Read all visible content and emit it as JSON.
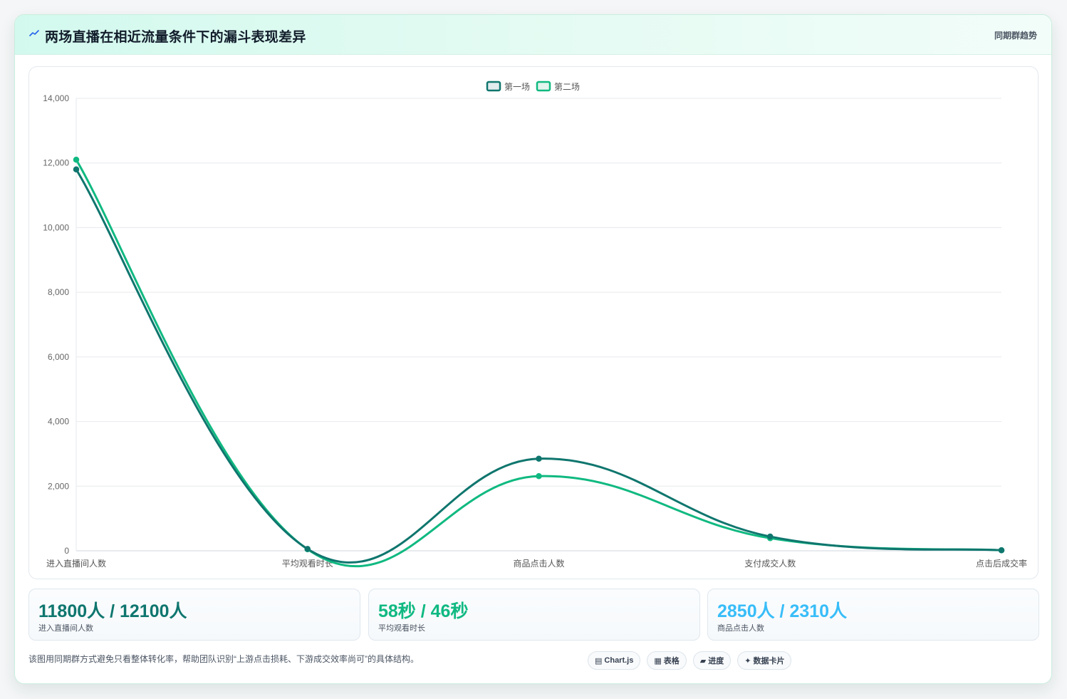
{
  "header": {
    "title": "两场直播在相近流量条件下的漏斗表现差异",
    "tag": "同期群趋势"
  },
  "colors": {
    "series1": "#0f766e",
    "series2": "#10b981",
    "stat1": "#0f766e",
    "stat2": "#10b981",
    "stat3": "#38bdf8"
  },
  "chart_data": {
    "type": "line",
    "categories": [
      "进入直播间人数",
      "平均观看时长",
      "商品点击人数",
      "支付成交人数",
      "点击后成交率"
    ],
    "series": [
      {
        "name": "第一场",
        "values": [
          11800,
          58,
          2850,
          440,
          15.4
        ]
      },
      {
        "name": "第二场",
        "values": [
          12100,
          46,
          2310,
          390,
          16.9
        ]
      }
    ],
    "ylim": [
      0,
      14000
    ],
    "yticks": [
      0,
      2000,
      4000,
      6000,
      8000,
      10000,
      12000,
      14000
    ],
    "ytick_labels": [
      "0",
      "2,000",
      "4,000",
      "6,000",
      "8,000",
      "10,000",
      "12,000",
      "14,000"
    ],
    "legend_position": "top-center",
    "grid": true
  },
  "stats": [
    {
      "value": "11800人 / 12100人",
      "label": "进入直播间人数"
    },
    {
      "value": "58秒 / 46秒",
      "label": "平均观看时长"
    },
    {
      "value": "2850人 / 2310人",
      "label": "商品点击人数"
    }
  ],
  "footnote": "该图用同期群方式避免只看整体转化率，帮助团队识别“上游点击损耗、下游成交效率尚可”的具体结构。",
  "chips": [
    {
      "icon": "▤",
      "icon_name": "chart-icon",
      "label": "Chart.js"
    },
    {
      "icon": "▦",
      "icon_name": "table-icon",
      "label": "表格"
    },
    {
      "icon": "▰",
      "icon_name": "progress-icon",
      "label": "进度"
    },
    {
      "icon": "✦",
      "icon_name": "card-icon",
      "label": "数据卡片"
    }
  ]
}
